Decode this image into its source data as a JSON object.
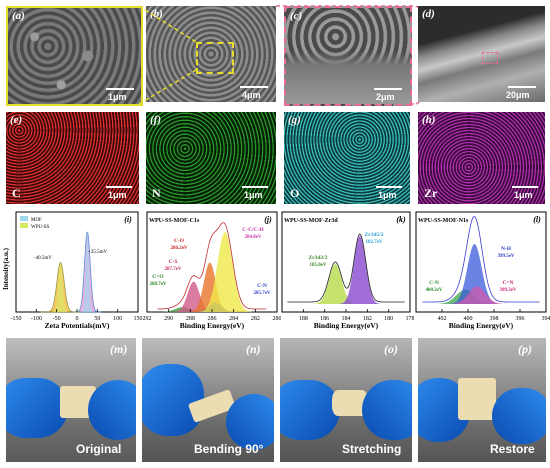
{
  "row1": {
    "a": {
      "label": "(a)",
      "scale": "1μm"
    },
    "b": {
      "label": "(b)",
      "scale": "4μm"
    },
    "c": {
      "label": "(c)",
      "scale": "2μm"
    },
    "d": {
      "label": "(d)",
      "scale": "20μm"
    }
  },
  "row2": {
    "e": {
      "label": "(e)",
      "element": "C",
      "scale": "1μm",
      "color": "#c81e1e"
    },
    "f": {
      "label": "(f)",
      "element": "N",
      "scale": "1μm",
      "color": "#1e8c1e"
    },
    "g": {
      "label": "(g)",
      "element": "O",
      "scale": "1μm",
      "color": "#2aa6a6"
    },
    "h": {
      "label": "(h)",
      "element": "Zr",
      "scale": "1μm",
      "color": "#9a1e9a"
    }
  },
  "chart_data": [
    {
      "type": "area",
      "panel": "(i)",
      "title": "",
      "xlabel": "Zeta Potentials(mV)",
      "ylabel": "Intensity(a.u.)",
      "xlim": [
        -150,
        150
      ],
      "xticks": [
        "-150",
        "-100",
        "-50",
        "0",
        "50",
        "100",
        "150"
      ],
      "series": [
        {
          "name": "MOF",
          "peak_x": 25.5,
          "peak_label": "+25.5mV"
        },
        {
          "name": "WPU-SS",
          "peak_x": -40.5,
          "peak_label": "-40.5mV"
        }
      ]
    },
    {
      "type": "area",
      "panel": "(j)",
      "title": "WPU-SS-MOF-C1s",
      "xlabel": "Binding Energy(eV)",
      "ylabel": "",
      "xlim": [
        292,
        280
      ],
      "xticks": [
        "292",
        "290",
        "288",
        "286",
        "284",
        "282",
        "280"
      ],
      "peaks": [
        {
          "name": "C=O",
          "value": "288.7eV",
          "x": 288.7
        },
        {
          "name": "C-S",
          "value": "287.7eV",
          "x": 287.7
        },
        {
          "name": "C-O",
          "value": "286.2eV",
          "x": 286.2
        },
        {
          "name": "C-N",
          "value": "285.7eV",
          "x": 285.7
        },
        {
          "name": "C-C/C-H",
          "value": "284.8eV",
          "x": 284.8
        }
      ]
    },
    {
      "type": "area",
      "panel": "(k)",
      "title": "WPU-SS-MOF-Zr3d",
      "xlabel": "Binding Energy(eV)",
      "ylabel": "",
      "xlim": [
        190,
        178
      ],
      "xticks": [
        "188",
        "186",
        "184",
        "182",
        "180",
        "178"
      ],
      "peaks": [
        {
          "name": "Zr3d3/2",
          "value": "185.0eV",
          "x": 185.0
        },
        {
          "name": "Zr3d5/2",
          "value": "182.7eV",
          "x": 182.7
        }
      ]
    },
    {
      "type": "area",
      "panel": "(l)",
      "title": "WPU-SS-MOF-N1s",
      "xlabel": "Binding Energy(eV)",
      "ylabel": "",
      "xlim": [
        404,
        394
      ],
      "xticks": [
        "402",
        "400",
        "398",
        "396",
        "394"
      ],
      "peaks": [
        {
          "name": "C-N",
          "value": "400.2eV",
          "x": 400.2
        },
        {
          "name": "N-H",
          "value": "399.5eV",
          "x": 399.5
        },
        {
          "name": "C=N",
          "value": "399.3eV",
          "x": 399.3
        }
      ]
    }
  ],
  "photos": {
    "m": {
      "label": "(m)",
      "caption": "Original"
    },
    "n": {
      "label": "(n)",
      "caption": "Bending 90°"
    },
    "o": {
      "label": "(o)",
      "caption": "Stretching"
    },
    "p": {
      "label": "(p)",
      "caption": "Restore"
    }
  }
}
